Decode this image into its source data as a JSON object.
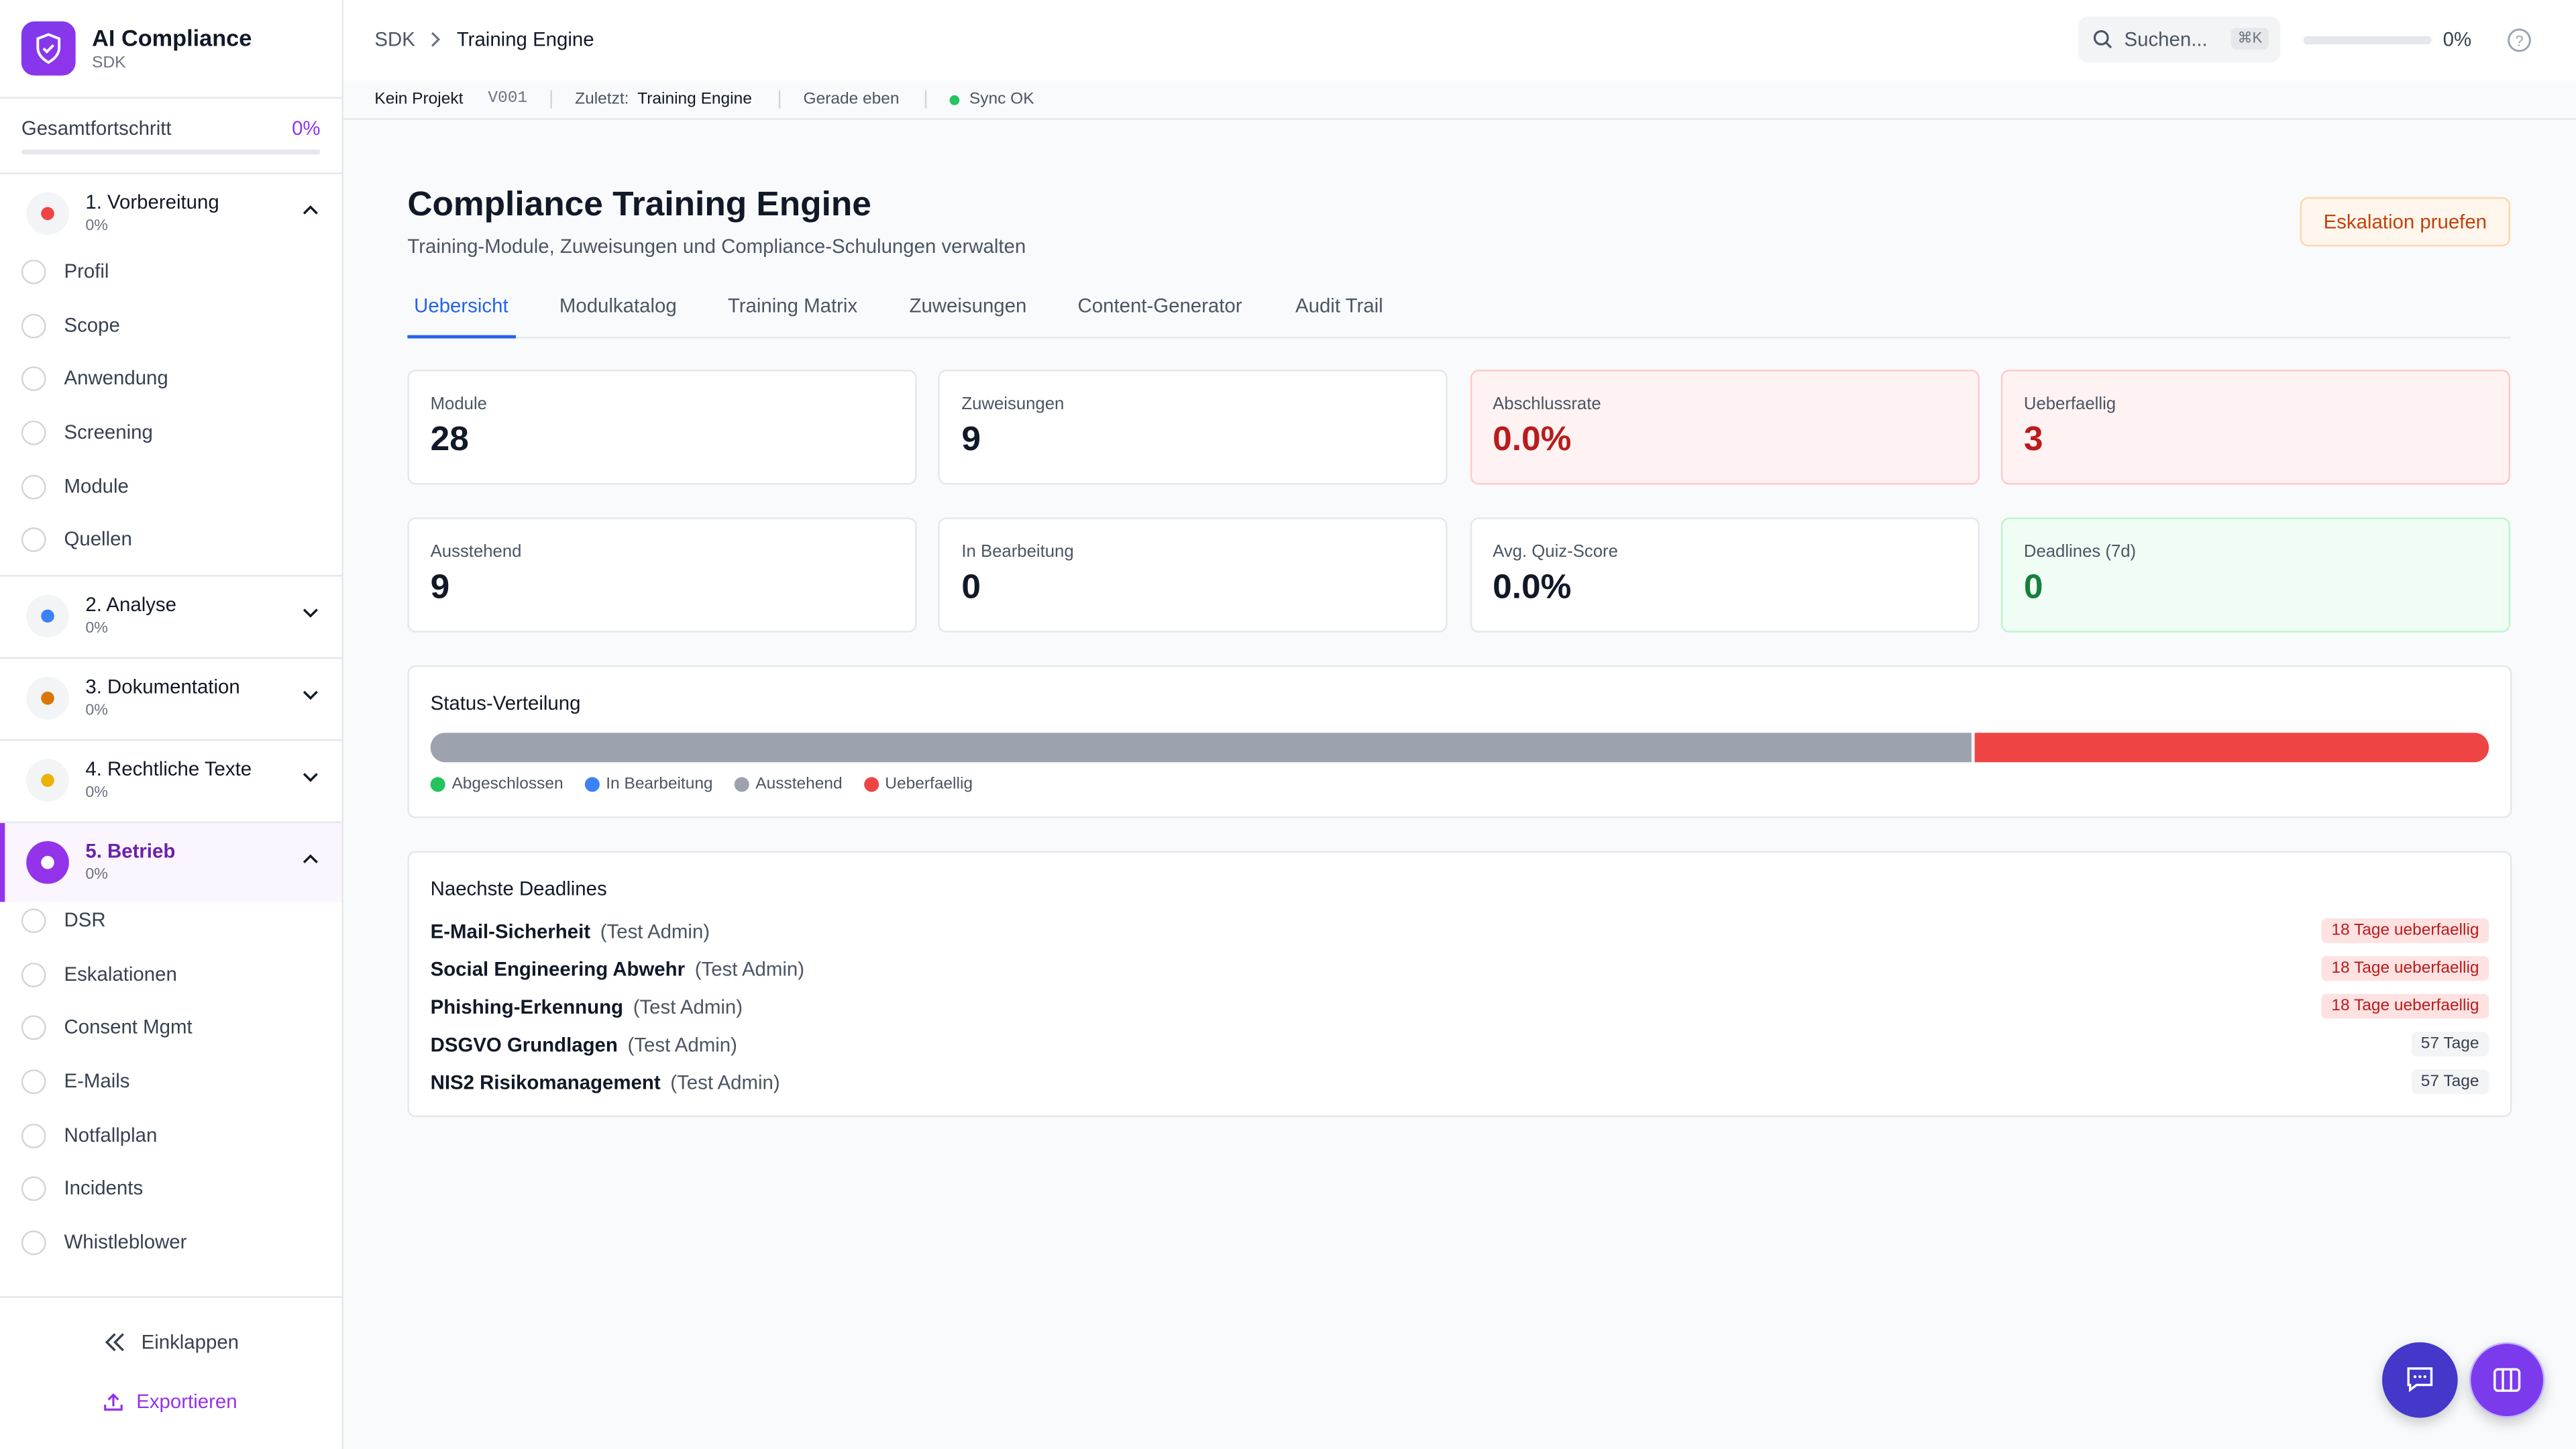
{
  "sidebar": {
    "app_title": "AI Compliance",
    "app_subtitle": "SDK",
    "progress_label": "Gesamtfortschritt",
    "progress_value": "0%",
    "sections": [
      {
        "title": "1. Vorbereitung",
        "progress": "0%",
        "expanded": true,
        "active": false,
        "icon_color": "#ef4444",
        "items": [
          "Profil",
          "Scope",
          "Anwendung",
          "Screening",
          "Module",
          "Quellen"
        ]
      },
      {
        "title": "2. Analyse",
        "progress": "0%",
        "expanded": false,
        "active": false,
        "icon_color": "#3b82f6",
        "items": []
      },
      {
        "title": "3. Dokumentation",
        "progress": "0%",
        "expanded": false,
        "active": false,
        "icon_color": "#d97706",
        "items": []
      },
      {
        "title": "4. Rechtliche Texte",
        "progress": "0%",
        "expanded": false,
        "active": false,
        "icon_color": "#eab308",
        "items": []
      },
      {
        "title": "5. Betrieb",
        "progress": "0%",
        "expanded": true,
        "active": true,
        "icon_color": "#ffffff",
        "items": [
          "DSR",
          "Eskalationen",
          "Consent Mgmt",
          "E-Mails",
          "Notfallplan",
          "Incidents",
          "Whistleblower"
        ]
      }
    ],
    "collapse": "Einklappen",
    "export": "Exportieren"
  },
  "topbar": {
    "breadcrumb": [
      "SDK",
      "Training Engine"
    ],
    "search": "Suchen...",
    "shortcut": "⌘K",
    "progress": "0%"
  },
  "statusbar": {
    "project": "Kein Projekt",
    "version": "V001",
    "last_label": "Zuletzt:",
    "last_value": "Training Engine",
    "time": "Gerade eben",
    "sync": "Sync OK"
  },
  "header": {
    "title": "Compliance Training Engine",
    "subtitle": "Training-Module, Zuweisungen und Compliance-Schulungen verwalten",
    "button": "Eskalation pruefen"
  },
  "tabs": {
    "items": [
      "Uebersicht",
      "Modulkatalog",
      "Training Matrix",
      "Zuweisungen",
      "Content-Generator",
      "Audit Trail"
    ],
    "active": 0
  },
  "stats": [
    {
      "label": "Module",
      "value": 28,
      "tone": "neutral"
    },
    {
      "label": "Zuweisungen",
      "value": 9,
      "tone": "neutral"
    },
    {
      "label": "Abschlussrate",
      "value": "0.0%",
      "tone": "red"
    },
    {
      "label": "Ueberfaellig",
      "value": 3,
      "tone": "red"
    },
    {
      "label": "Ausstehend",
      "value": 9,
      "tone": "neutral"
    },
    {
      "label": "In Bearbeitung",
      "value": 0,
      "tone": "neutral"
    },
    {
      "label": "Avg. Quiz-Score",
      "value": "0.0%",
      "tone": "neutral"
    },
    {
      "label": "Deadlines (7d)",
      "value": 0,
      "tone": "green"
    }
  ],
  "status": {
    "title": "Status-Verteilung",
    "segments": [
      {
        "name": "Abgeschlossen",
        "color": "#22c55e",
        "value": 0
      },
      {
        "name": "In Bearbeitung",
        "color": "#3b82f6",
        "value": 0
      },
      {
        "name": "Ausstehend",
        "color": "#9ca3af",
        "value": 9
      },
      {
        "name": "Ueberfaellig",
        "color": "#ef4444",
        "value": 3
      }
    ]
  },
  "deadlines": {
    "title": "Naechste Deadlines",
    "rows": [
      {
        "name": "E-Mail-Sicherheit",
        "owner": "(Test Admin)",
        "badge": "18 Tage ueberfaellig",
        "overdue": true
      },
      {
        "name": "Social Engineering Abwehr",
        "owner": "(Test Admin)",
        "badge": "18 Tage ueberfaellig",
        "overdue": true
      },
      {
        "name": "Phishing-Erkennung",
        "owner": "(Test Admin)",
        "badge": "18 Tage ueberfaellig",
        "overdue": true
      },
      {
        "name": "DSGVO Grundlagen",
        "owner": "(Test Admin)",
        "badge": "57 Tage",
        "overdue": false
      },
      {
        "name": "NIS2 Risikomanagement",
        "owner": "(Test Admin)",
        "badge": "57 Tage",
        "overdue": false
      }
    ]
  }
}
